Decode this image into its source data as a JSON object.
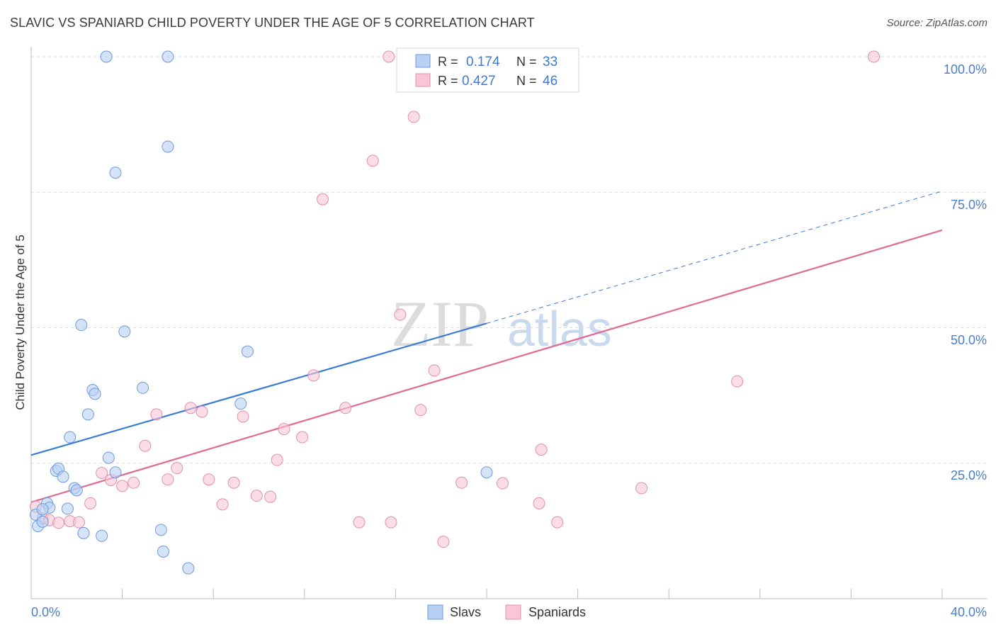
{
  "title": "SLAVIC VS SPANIARD CHILD POVERTY UNDER THE AGE OF 5 CORRELATION CHART",
  "source": "Source: ZipAtlas.com",
  "watermark": {
    "zip": "ZIP",
    "atlas": "atlas"
  },
  "colors": {
    "slavs": "#3a7bd5",
    "spaniards": "#e06a94",
    "slavs_fill": "#b8d1f3",
    "spaniards_fill": "#f8c6d6",
    "tick": "#4a7ec8"
  },
  "legend_box": [
    {
      "r_label": "R =",
      "r_value": "0.174",
      "n_label": "N =",
      "n_value": "33"
    },
    {
      "r_label": "R =",
      "r_value": "0.427",
      "n_label": "N =",
      "n_value": "46"
    }
  ],
  "chart_data": {
    "type": "scatter",
    "title": "SLAVIC VS SPANIARD CHILD POVERTY UNDER THE AGE OF 5 CORRELATION CHART",
    "xlabel": "",
    "ylabel": "Child Poverty Under the Age of 5",
    "xlim": [
      0,
      40
    ],
    "ylim": [
      0,
      100
    ],
    "x_tick_labels": [
      "0.0%",
      "40.0%"
    ],
    "y_tick_labels": [
      "100.0%",
      "75.0%",
      "50.0%",
      "25.0%"
    ],
    "y_ticks": [
      100,
      75,
      50,
      25
    ],
    "legend": [
      "Slavs",
      "Spaniards"
    ],
    "series": [
      {
        "name": "Slavs",
        "r": 0.174,
        "n": 33,
        "trend": {
          "x0": 0,
          "y0": 26.5,
          "x1": 20,
          "y1": 50.8,
          "dashed_to_x": 40,
          "dashed_y": 75.2
        },
        "points": [
          [
            0.2,
            15.5
          ],
          [
            0.3,
            13.4
          ],
          [
            0.5,
            14.2
          ],
          [
            0.7,
            17.6
          ],
          [
            0.8,
            16.8
          ],
          [
            1.1,
            23.6
          ],
          [
            1.2,
            24.0
          ],
          [
            1.4,
            22.5
          ],
          [
            1.6,
            16.6
          ],
          [
            1.7,
            29.8
          ],
          [
            1.9,
            20.4
          ],
          [
            2.0,
            20.0
          ],
          [
            2.2,
            50.5
          ],
          [
            2.3,
            12.1
          ],
          [
            2.5,
            34.0
          ],
          [
            2.7,
            38.5
          ],
          [
            2.8,
            37.8
          ],
          [
            3.1,
            11.6
          ],
          [
            3.4,
            26.0
          ],
          [
            3.7,
            23.3
          ],
          [
            4.1,
            49.3
          ],
          [
            4.9,
            38.9
          ],
          [
            5.7,
            12.7
          ],
          [
            5.8,
            8.7
          ],
          [
            6.0,
            83.4
          ],
          [
            6.9,
            5.6
          ],
          [
            9.2,
            36.0
          ],
          [
            9.5,
            45.6
          ],
          [
            20.0,
            23.3
          ],
          [
            3.3,
            100.0
          ],
          [
            6.0,
            100.0
          ],
          [
            3.7,
            78.6
          ],
          [
            0.5,
            16.5
          ]
        ]
      },
      {
        "name": "Spaniards",
        "r": 0.427,
        "n": 46,
        "trend": {
          "x0": 0,
          "y0": 17.8,
          "x1": 40,
          "y1": 68.0
        },
        "points": [
          [
            0.2,
            17.0
          ],
          [
            0.5,
            14.8
          ],
          [
            0.8,
            14.5
          ],
          [
            1.2,
            14.0
          ],
          [
            1.7,
            14.3
          ],
          [
            2.1,
            14.1
          ],
          [
            2.6,
            17.6
          ],
          [
            3.1,
            23.2
          ],
          [
            3.5,
            21.9
          ],
          [
            4.0,
            20.8
          ],
          [
            4.5,
            21.4
          ],
          [
            5.0,
            28.2
          ],
          [
            5.5,
            34.0
          ],
          [
            6.0,
            22.0
          ],
          [
            6.4,
            24.1
          ],
          [
            7.0,
            35.2
          ],
          [
            7.5,
            34.5
          ],
          [
            7.8,
            22.0
          ],
          [
            8.4,
            17.4
          ],
          [
            8.9,
            21.4
          ],
          [
            9.3,
            33.6
          ],
          [
            9.9,
            19.0
          ],
          [
            10.5,
            18.8
          ],
          [
            10.8,
            25.6
          ],
          [
            11.1,
            31.3
          ],
          [
            11.9,
            29.8
          ],
          [
            12.4,
            41.2
          ],
          [
            12.8,
            73.7
          ],
          [
            13.8,
            35.2
          ],
          [
            14.4,
            14.1
          ],
          [
            15.0,
            80.8
          ],
          [
            15.8,
            14.1
          ],
          [
            16.2,
            52.4
          ],
          [
            16.8,
            88.9
          ],
          [
            17.1,
            34.8
          ],
          [
            17.7,
            42.1
          ],
          [
            18.1,
            10.5
          ],
          [
            18.9,
            21.4
          ],
          [
            20.7,
            21.3
          ],
          [
            22.3,
            17.6
          ],
          [
            22.4,
            27.5
          ],
          [
            23.1,
            14.1
          ],
          [
            26.8,
            20.4
          ],
          [
            31.0,
            40.1
          ],
          [
            37.0,
            100.0
          ],
          [
            15.7,
            100.0
          ]
        ]
      }
    ]
  },
  "bottom_legend": [
    {
      "label": "Slavs"
    },
    {
      "label": "Spaniards"
    }
  ]
}
